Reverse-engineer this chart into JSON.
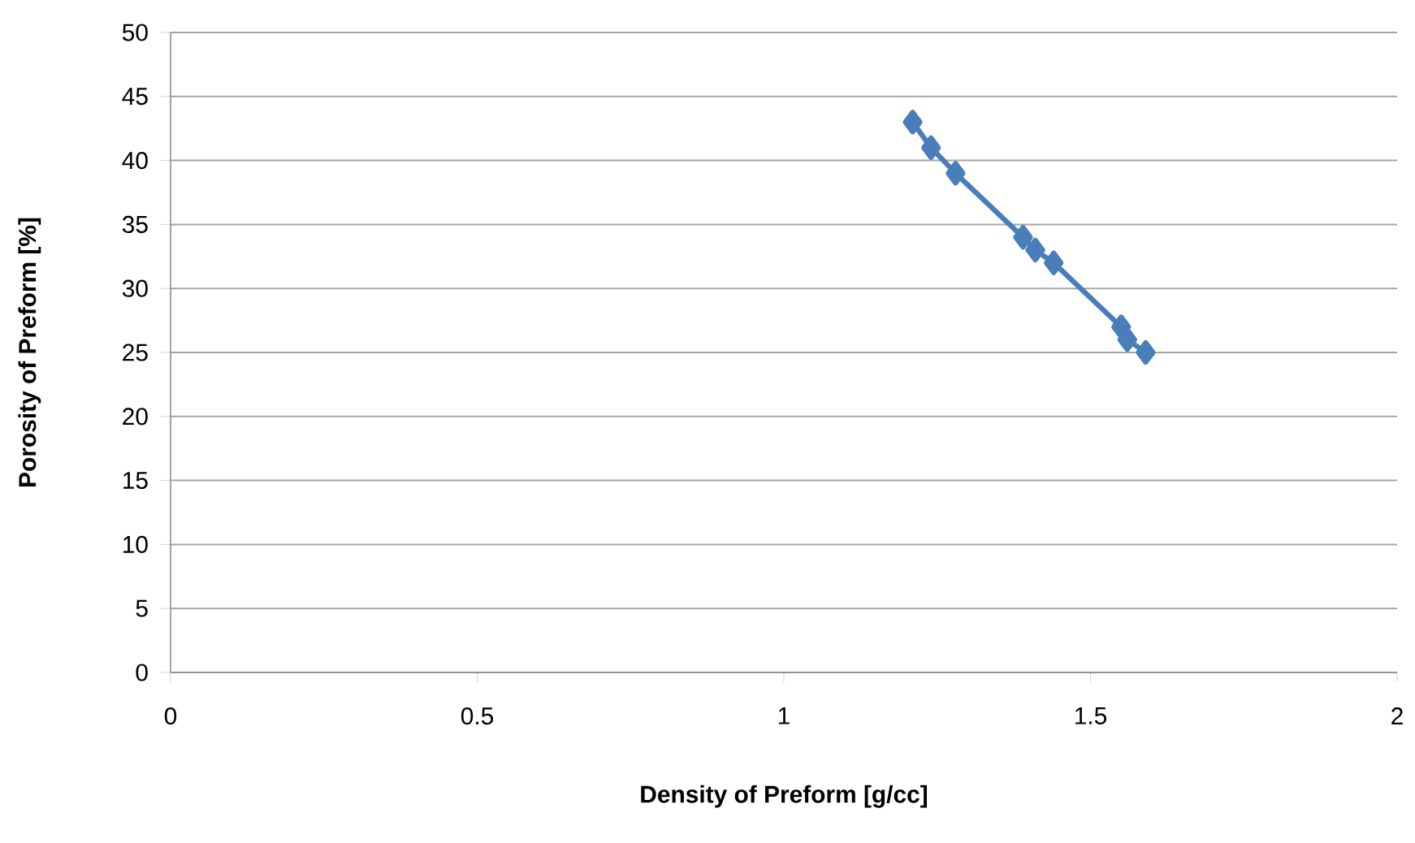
{
  "chart_data": {
    "type": "line",
    "xlabel": "Density of Preform [g/cc]",
    "ylabel": "Porosity of Preform [%]",
    "series": [
      {
        "color": "#4a7ebb",
        "x": [
          1.21,
          1.24,
          1.28,
          1.39,
          1.41,
          1.44,
          1.55,
          1.56,
          1.59
        ],
        "values": [
          43,
          41,
          39,
          34,
          33,
          32,
          27,
          26,
          25
        ]
      }
    ],
    "xlim": [
      0,
      2
    ],
    "xticks": [
      0,
      0.5,
      1,
      1.5,
      2
    ],
    "ylim": [
      0,
      50
    ],
    "yticks": [
      0,
      5,
      10,
      15,
      20,
      25,
      30,
      35,
      40,
      45,
      50
    ],
    "grid": "y",
    "marker": "diamond"
  }
}
